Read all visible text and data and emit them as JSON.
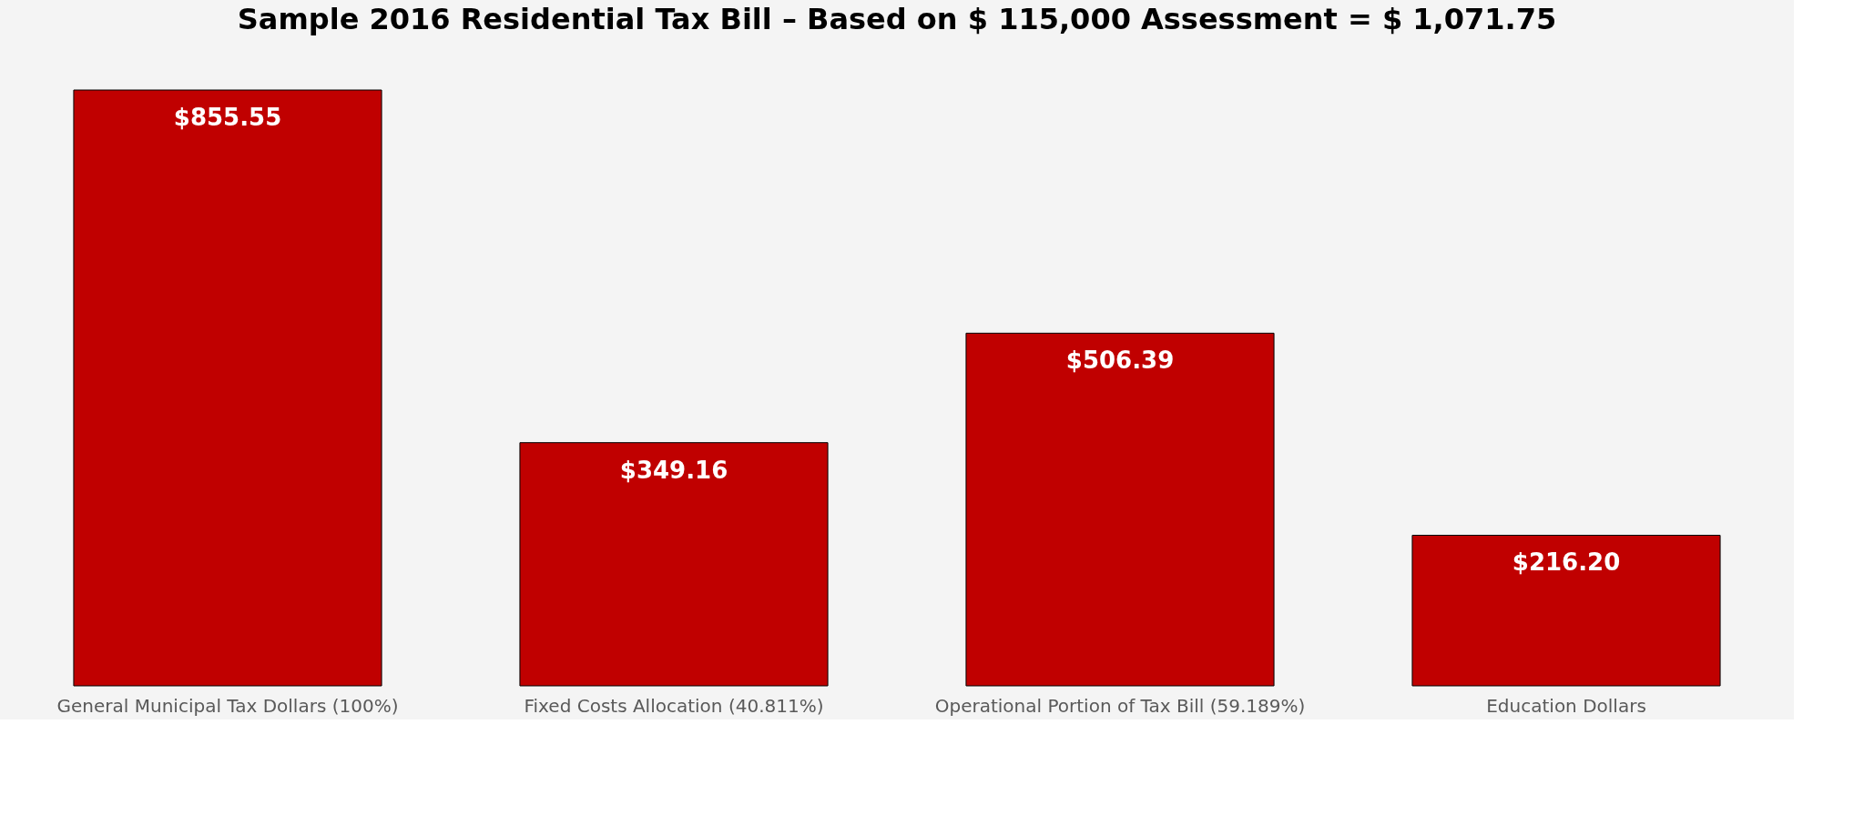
{
  "chart_data": {
    "type": "bar",
    "title": "Sample 2016 Residential Tax Bill – Based on $ 115,000 Assessment = $ 1,071.75",
    "categories": [
      "General Municipal Tax Dollars (100%)",
      "Fixed Costs Allocation (40.811%)",
      "Operational Portion of Tax Bill (59.189%)",
      "Education Dollars"
    ],
    "values": [
      855.55,
      349.16,
      506.39,
      216.2
    ],
    "value_labels": [
      "$855.55",
      "$349.16",
      "$506.39",
      "$216.20"
    ],
    "color": "#c00000"
  }
}
